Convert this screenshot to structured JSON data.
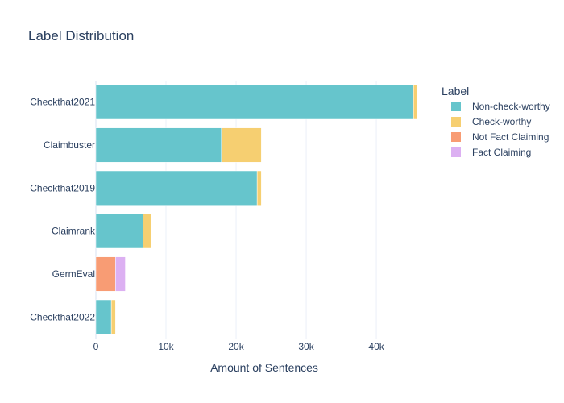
{
  "chart_data": {
    "type": "bar",
    "orientation": "horizontal",
    "stacked": true,
    "title": "Label Distribution",
    "xlabel": "Amount of Sentences",
    "ylabel": "",
    "xlim": [
      0,
      47000
    ],
    "x_ticks": [
      0,
      10000,
      20000,
      30000,
      40000
    ],
    "x_tick_labels": [
      "0",
      "10k",
      "20k",
      "30k",
      "40k"
    ],
    "grid": true,
    "legend": {
      "title": "Label",
      "placement": "right"
    },
    "categories": [
      "Checkthat2021",
      "Claimbuster",
      "Checkthat2019",
      "Claimrank",
      "GermEval",
      "Checkthat2022"
    ],
    "series": [
      {
        "name": "Non-check-worthy",
        "color": "#66c5cc",
        "values": [
          45300,
          17900,
          23000,
          6700,
          0,
          2200
        ]
      },
      {
        "name": "Check-worthy",
        "color": "#f6cf71",
        "values": [
          500,
          5700,
          600,
          1200,
          0,
          600
        ]
      },
      {
        "name": "Not Fact Claiming",
        "color": "#f89c74",
        "values": [
          0,
          0,
          0,
          0,
          2800,
          0
        ]
      },
      {
        "name": "Fact Claiming",
        "color": "#dcb0f2",
        "values": [
          0,
          0,
          0,
          0,
          1400,
          0
        ]
      }
    ]
  }
}
